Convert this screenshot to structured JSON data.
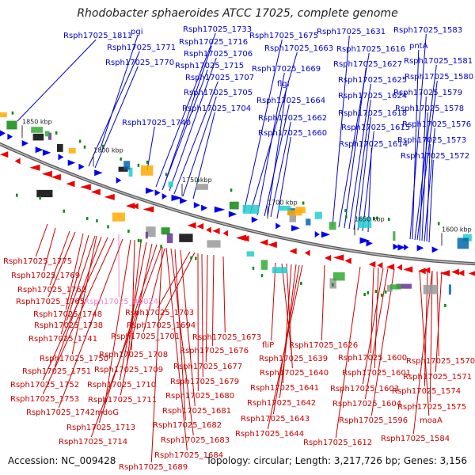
{
  "title": "Rhodobacter sphaeroides ATCC 17025, complete genome",
  "footer": {
    "accession": "Accession: NC_009428",
    "topology": "Topology: circular",
    "length": "Length: 3,217,726 bp",
    "genes": "Genes: 3,156",
    "sep": "; "
  },
  "colors": {
    "forward_label": "#0000cc",
    "reverse_label": "#cc0000",
    "rna_label": "#ee88cc",
    "backbone": "#888888",
    "forward_gene": "#0000ee",
    "reverse_gene": "#ee0000",
    "feature_green": "#118811",
    "feature_cyan": "#22cccc"
  },
  "ticks": [
    "1850 kbp",
    "1800 kbp",
    "1750 kbp",
    "1700 kbp",
    "1650 kbp",
    "1600 kbp"
  ],
  "top_labels": [
    "Rsph17025_1811",
    "pgi",
    "Rsph17025_1771",
    "Rsph17025_1770",
    "Rsph17025_1733",
    "Rsph17025_1716",
    "Rsph17025_1706",
    "Rsph17025_1715",
    "Rsph17025_1707",
    "Rsph17025_1705",
    "Rsph17025_1704",
    "Rsph17025_1740",
    "Rsph17025_1675",
    "Rsph17025_1663",
    "Rsph17025_1669",
    "flgI",
    "Rsph17025_1664",
    "Rsph17025_1662",
    "Rsph17025_1660",
    "Rsph17025_1631",
    "Rsph17025_1616",
    "Rsph17025_1627",
    "Rsph17025_1625",
    "Rsph17025_1624",
    "Rsph17025_1618",
    "Rsph17025_1615",
    "Rsph17025_1614",
    "Rsph17025_1583",
    "pntA",
    "Rsph17025_1581",
    "Rsph17025_1580",
    "Rsph17025_1579",
    "Rsph17025_1578",
    "Rsph17025_1576",
    "Rsph17025_1573",
    "Rsph17025_1572"
  ],
  "bottom_labels": [
    "Rsph17025_1775",
    "Rsph17025_1769",
    "Rsph17025_1762",
    "Rsph17025_1765",
    "Rsph17025_R0024",
    "Rsph17025_1748",
    "Rsph17025_1738",
    "Rsph17025_1741",
    "Rsph17025_1703",
    "Rsph17025_1694",
    "Rsph17025_1701",
    "Rsph17025_1673",
    "Rsph17025_1676",
    "Rsph17025_1750",
    "Rsph17025_1708",
    "Rsph17025_1677",
    "Rsph17025_1751",
    "Rsph17025_1709",
    "Rsph17025_1679",
    "Rsph17025_1752",
    "Rsph17025_1710",
    "Rsph17025_1680",
    "Rsph17025_1753",
    "Rsph17025_1711",
    "Rsph17025_1742",
    "mdoG",
    "Rsph17025_1681",
    "Rsph17025_1682",
    "Rsph17025_1713",
    "Rsph17025_1683",
    "Rsph17025_1714",
    "Rsph17025_1684",
    "Rsph17025_1689",
    "fliP",
    "Rsph17025_1626",
    "Rsph17025_1639",
    "Rsph17025_1600",
    "Rsph17025_1640",
    "Rsph17025_1601",
    "Rsph17025_1641",
    "Rsph17025_1603",
    "Rsph17025_1642",
    "Rsph17025_1604",
    "Rsph17025_1643",
    "Rsph17025_1644",
    "Rsph17025_1612",
    "Rsph17025_1596",
    "moaA",
    "Rsph17025_1584",
    "Rsph17025_1570",
    "Rsph17025_1571",
    "Rsph17025_1574",
    "Rsph17025_1575"
  ]
}
